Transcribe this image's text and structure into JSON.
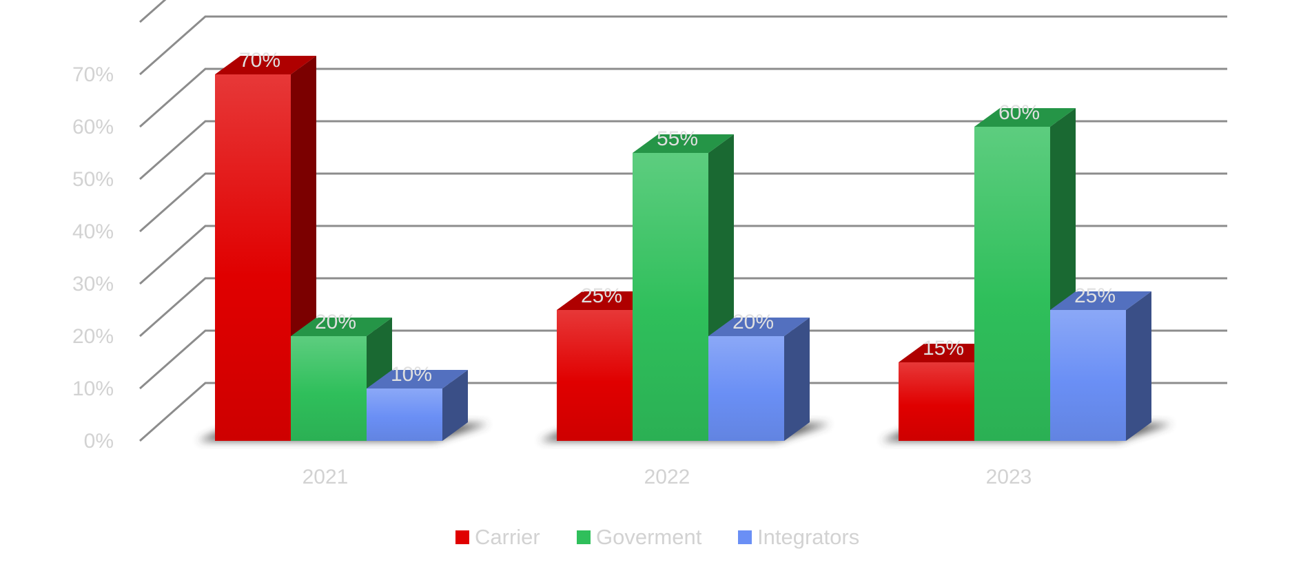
{
  "chart_data": {
    "type": "bar",
    "style": "3d-clustered-column",
    "categories": [
      "2021",
      "2022",
      "2023"
    ],
    "series": [
      {
        "name": "Carrier",
        "values": [
          70,
          25,
          15
        ],
        "color": "#e00000"
      },
      {
        "name": "Goverment",
        "values": [
          20,
          55,
          60
        ],
        "color": "#2fbf5b"
      },
      {
        "name": "Integrators",
        "values": [
          10,
          20,
          25
        ],
        "color": "#6a8ff5"
      }
    ],
    "y_ticks": [
      "0%",
      "10%",
      "20%",
      "30%",
      "40%",
      "50%",
      "60%",
      "70%"
    ],
    "value_format": "{v}%",
    "ylim": [
      0,
      70
    ],
    "grid": true,
    "legend_position": "bottom-center",
    "title": "",
    "xlabel": "",
    "ylabel": ""
  }
}
